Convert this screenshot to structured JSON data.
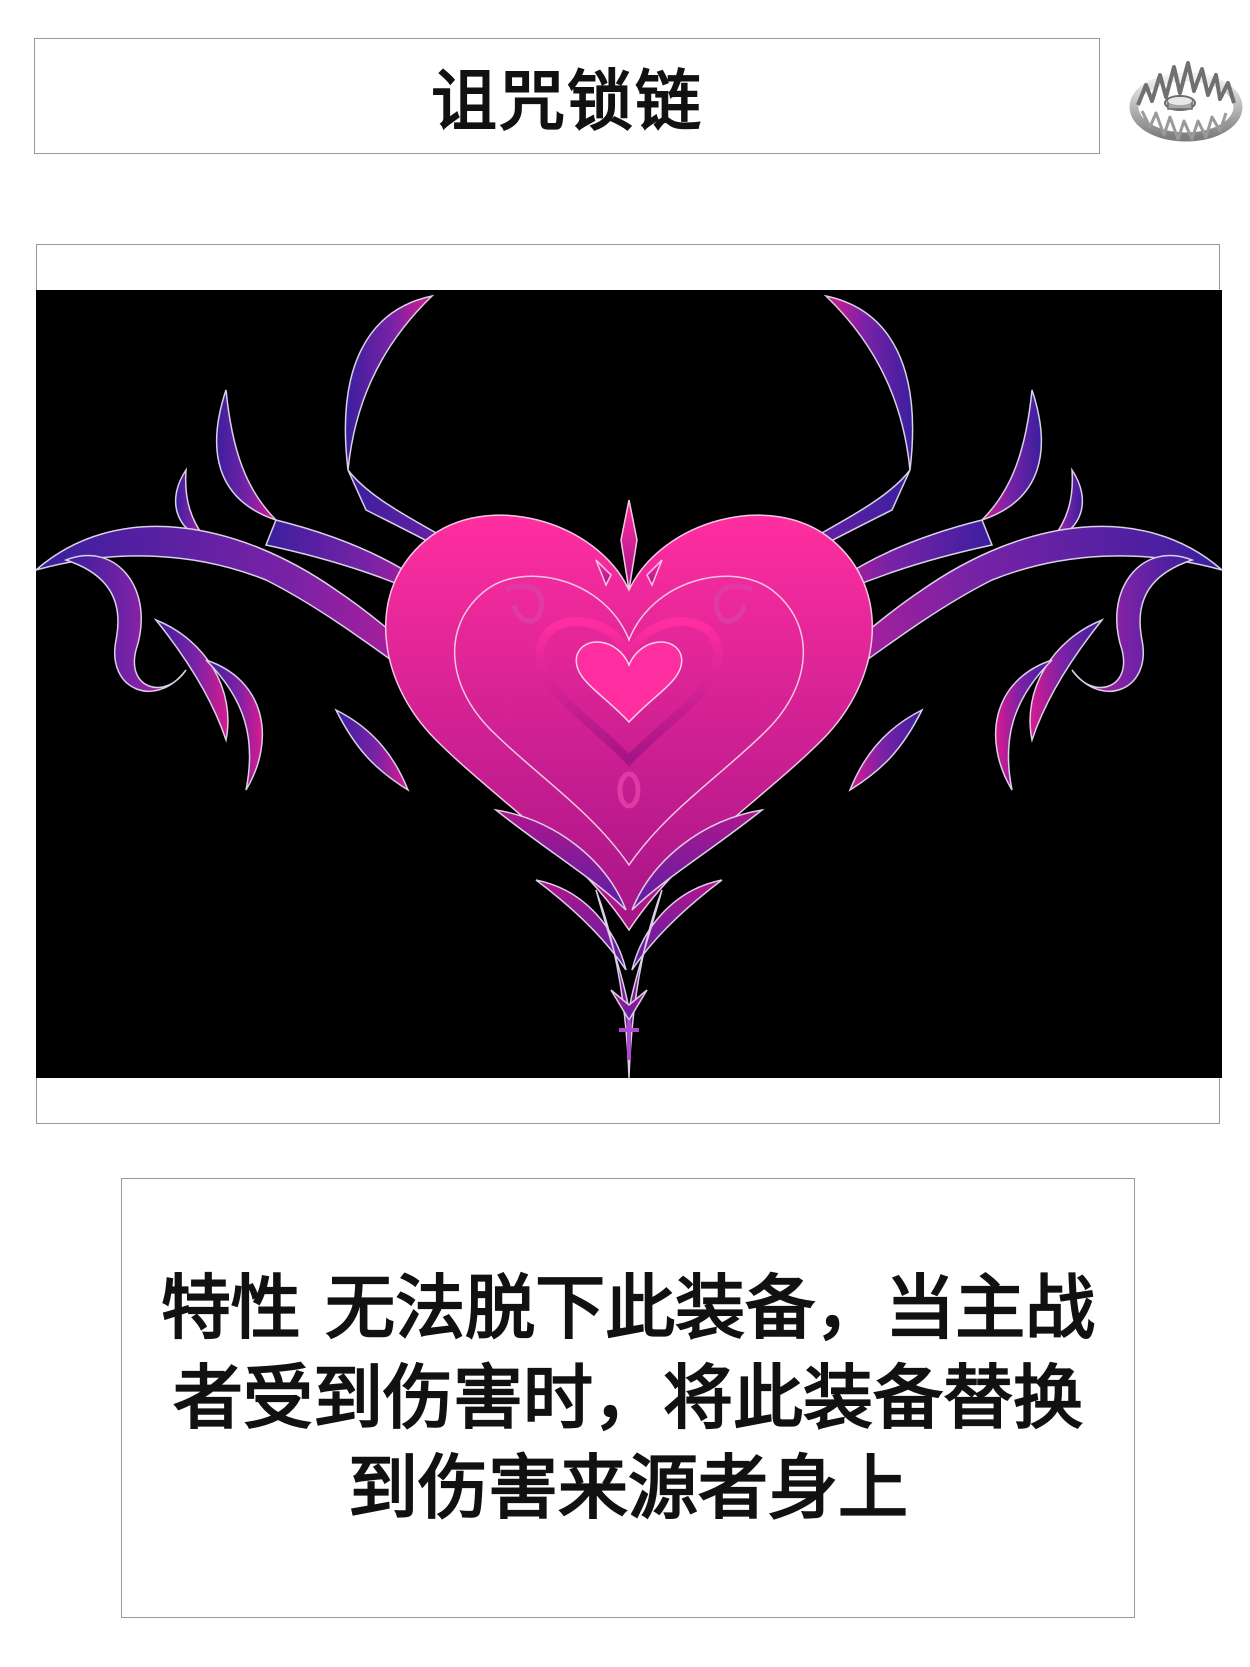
{
  "card": {
    "title": "诅咒锁链",
    "icon": "bear-trap-icon",
    "art": "purple-pink-tribal-heart-artwork",
    "description": "特性 无法脱下此装备，当主战者受到伤害时，将此装备替换到伤害来源者身上"
  },
  "colors": {
    "background": "#ffffff",
    "border": "#9a9a9a",
    "art_background": "#000000",
    "art_pink": "#ff2a9c",
    "art_magenta": "#c0188f",
    "art_purple": "#4b1fa8",
    "text": "#111111"
  }
}
